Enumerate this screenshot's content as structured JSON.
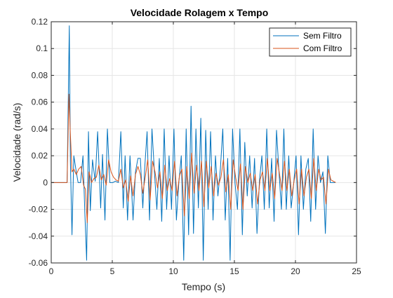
{
  "chart_data": {
    "type": "line",
    "title": "Velocidade Rolagem x Tempo",
    "xlabel": "Tempo (s)",
    "ylabel": "Velocidade (rad/s)",
    "xlim": [
      0,
      25
    ],
    "ylim": [
      -0.06,
      0.12
    ],
    "xticks": [
      0,
      5,
      10,
      15,
      20,
      25
    ],
    "xtick_labels": [
      "0",
      "5",
      "10",
      "15",
      "20",
      "25"
    ],
    "yticks": [
      -0.06,
      -0.04,
      -0.02,
      0,
      0.02,
      0.04,
      0.06,
      0.08,
      0.1,
      0.12
    ],
    "ytick_labels": [
      "-0.06",
      "-0.04",
      "-0.02",
      "0",
      "0.02",
      "0.04",
      "0.06",
      "0.08",
      "0.1",
      "0.12"
    ],
    "grid": true,
    "legend_position": "top-right",
    "series": [
      {
        "name": "Sem Filtro",
        "color": "#0072BD",
        "x": [
          0,
          1.3,
          1.48,
          1.57,
          1.7,
          1.85,
          2.05,
          2.2,
          2.4,
          2.6,
          2.75,
          2.9,
          3.05,
          3.2,
          3.38,
          3.6,
          3.8,
          4.05,
          4.2,
          4.4,
          4.6,
          4.8,
          5.05,
          5.25,
          5.5,
          5.7,
          5.9,
          6.05,
          6.25,
          6.45,
          6.7,
          6.9,
          7.1,
          7.3,
          7.5,
          7.65,
          7.85,
          8.05,
          8.25,
          8.45,
          8.65,
          8.85,
          9.05,
          9.25,
          9.45,
          9.65,
          9.85,
          10.05,
          10.25,
          10.45,
          10.65,
          10.85,
          11.05,
          11.25,
          11.45,
          11.65,
          11.85,
          12.05,
          12.25,
          12.45,
          12.65,
          12.85,
          13.05,
          13.25,
          13.45,
          13.65,
          13.85,
          14.05,
          14.25,
          14.45,
          14.65,
          14.85,
          15.05,
          15.25,
          15.45,
          15.65,
          15.85,
          16.05,
          16.25,
          16.45,
          16.65,
          16.85,
          17.05,
          17.25,
          17.45,
          17.65,
          17.85,
          18.05,
          18.25,
          18.45,
          18.65,
          18.85,
          19.05,
          19.25,
          19.45,
          19.65,
          19.85,
          20.05,
          20.25,
          20.45,
          20.65,
          20.85,
          21.05,
          21.25,
          21.45,
          21.65,
          21.85,
          22.05,
          22.25,
          22.45,
          22.65,
          22.85,
          23.05,
          23.25
        ],
        "values": [
          0,
          0,
          0.117,
          0.015,
          -0.039,
          0.02,
          0.008,
          0,
          0,
          0.02,
          -0.022,
          -0.058,
          0.038,
          -0.021,
          0.017,
          0.001,
          0.038,
          -0.019,
          0.021,
          -0.028,
          0.04,
          0,
          0,
          0.001,
          0,
          0.038,
          -0.019,
          0.02,
          -0.028,
          0.02,
          -0.028,
          0.008,
          0.018,
          0.018,
          -0.019,
          0.01,
          0.038,
          -0.028,
          0.04,
          0.008,
          -0.02,
          0.018,
          -0.029,
          0.04,
          -0.02,
          0.02,
          -0.02,
          0.04,
          -0.028,
          0,
          0.02,
          -0.058,
          0.04,
          -0.039,
          0.057,
          -0.038,
          0.04,
          -0.019,
          0.048,
          -0.058,
          0.039,
          -0.02,
          0.038,
          -0.028,
          0.02,
          -0.01,
          0.01,
          0.04,
          -0.028,
          0.018,
          -0.058,
          0.04,
          0,
          -0.02,
          0.04,
          -0.039,
          0.03,
          -0.01,
          0.02,
          -0.019,
          0.018,
          -0.038,
          0.001,
          0.02,
          -0.02,
          0.04,
          -0.019,
          0.018,
          -0.029,
          0.039,
          0.008,
          -0.02,
          0.04,
          -0.02,
          0.02,
          -0.019,
          -0.001,
          0.02,
          -0.039,
          0.02,
          -0.02,
          0.01,
          0.018,
          -0.029,
          0.04,
          -0.02,
          0.02,
          0,
          0.008,
          -0.038,
          0.02,
          0,
          0,
          0
        ]
      },
      {
        "name": "Com Filtro",
        "color": "#D95319",
        "x": [
          0,
          1.3,
          1.45,
          1.55,
          1.7,
          1.85,
          2.05,
          2.25,
          2.45,
          2.65,
          2.8,
          2.95,
          3.1,
          3.3,
          3.5,
          3.7,
          3.9,
          4.1,
          4.3,
          4.5,
          4.7,
          4.9,
          5.1,
          5.3,
          5.5,
          5.7,
          5.9,
          6.1,
          6.3,
          6.5,
          6.7,
          6.9,
          7.1,
          7.3,
          7.5,
          7.7,
          7.9,
          8.1,
          8.3,
          8.5,
          8.7,
          8.9,
          9.1,
          9.3,
          9.5,
          9.7,
          9.9,
          10.1,
          10.3,
          10.5,
          10.7,
          10.9,
          11.1,
          11.3,
          11.5,
          11.7,
          11.9,
          12.1,
          12.3,
          12.5,
          12.7,
          12.9,
          13.1,
          13.3,
          13.5,
          13.7,
          13.9,
          14.1,
          14.3,
          14.5,
          14.7,
          14.9,
          15.1,
          15.3,
          15.5,
          15.7,
          15.9,
          16.1,
          16.3,
          16.5,
          16.7,
          16.9,
          17.1,
          17.3,
          17.5,
          17.7,
          17.9,
          18.1,
          18.3,
          18.5,
          18.7,
          18.9,
          19.1,
          19.3,
          19.5,
          19.7,
          19.9,
          20.1,
          20.3,
          20.5,
          20.7,
          20.9,
          21.1,
          21.3,
          21.5,
          21.7,
          21.9,
          22.1,
          22.3,
          22.5,
          22.7,
          22.9,
          23.1,
          23.3
        ],
        "values": [
          0,
          0,
          0.066,
          0.04,
          0.008,
          0.01,
          0.006,
          0.01,
          0.012,
          -0.002,
          -0.005,
          -0.03,
          0.008,
          0,
          0.003,
          0.004,
          0.013,
          0.002,
          0.006,
          -0.002,
          0.017,
          0.008,
          0.004,
          0.002,
          0.001,
          0.01,
          -0.004,
          0.002,
          -0.014,
          0.005,
          -0.01,
          0.006,
          0.012,
          0.006,
          -0.008,
          0.004,
          0.017,
          -0.013,
          0.016,
          0.008,
          -0.004,
          0.008,
          -0.012,
          0.013,
          -0.006,
          0.003,
          -0.006,
          0.016,
          -0.01,
          0.005,
          0.01,
          -0.025,
          0.012,
          -0.012,
          0.022,
          -0.008,
          0.013,
          -0.006,
          0.016,
          -0.018,
          0.016,
          -0.004,
          0.012,
          -0.01,
          0.007,
          -0.002,
          0.004,
          0.017,
          -0.007,
          0.006,
          -0.02,
          0.017,
          0.004,
          -0.006,
          0.014,
          -0.02,
          0.012,
          0,
          0.007,
          -0.006,
          0.006,
          -0.016,
          0.002,
          0.008,
          -0.006,
          0.018,
          -0.006,
          0.007,
          -0.012,
          0.018,
          0.006,
          -0.006,
          0.016,
          -0.006,
          0.01,
          -0.01,
          0.002,
          0.01,
          -0.016,
          0.01,
          -0.01,
          0.004,
          0.01,
          -0.012,
          0.018,
          -0.006,
          0.01,
          0.002,
          0.004,
          -0.016,
          0.01,
          0.002,
          0.001,
          0
        ]
      }
    ]
  }
}
